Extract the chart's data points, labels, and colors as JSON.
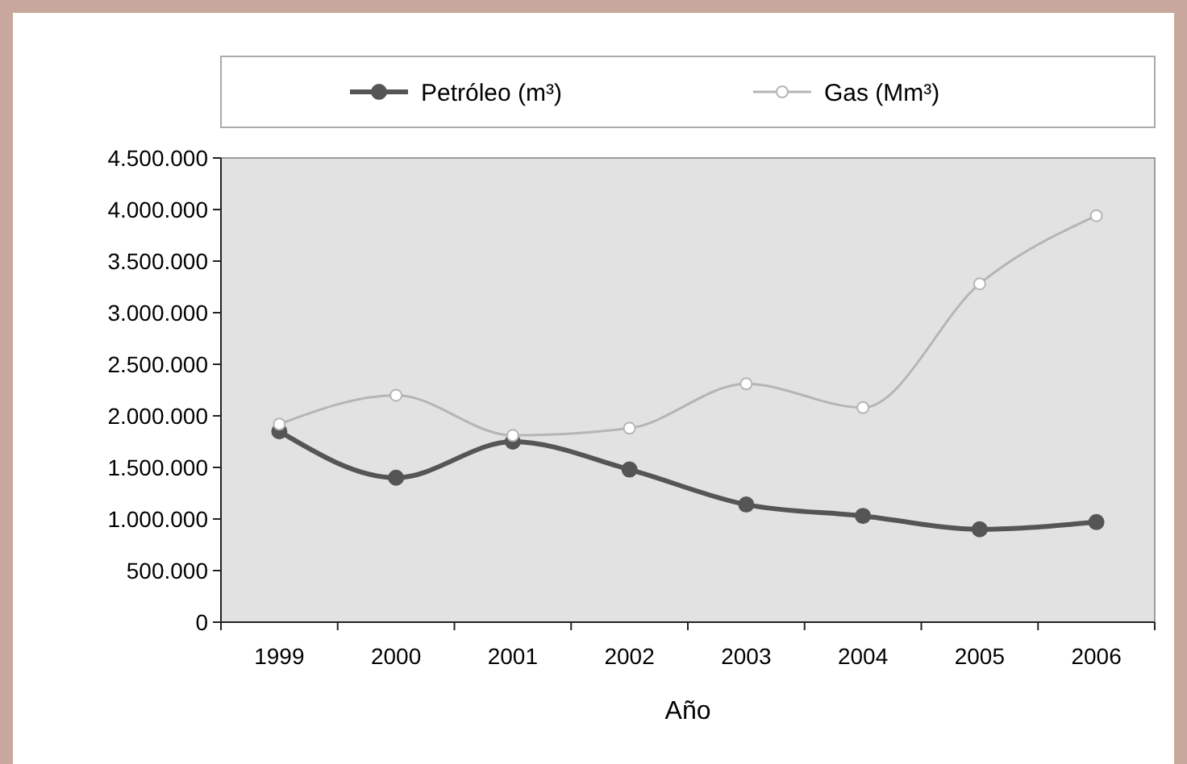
{
  "chart_data": {
    "type": "line",
    "xlabel": "Año",
    "categories": [
      "1999",
      "2000",
      "2001",
      "2002",
      "2003",
      "2004",
      "2005",
      "2006"
    ],
    "series": [
      {
        "name": "Petróleo (m³)",
        "color": "#555555",
        "values": [
          1850000,
          1400000,
          1750000,
          1480000,
          1140000,
          1030000,
          900000,
          970000
        ]
      },
      {
        "name": "Gas (Mm³)",
        "color": "#b5b5b5",
        "values": [
          1920000,
          2200000,
          1810000,
          1880000,
          2310000,
          2080000,
          3280000,
          3940000
        ]
      }
    ],
    "ylim": [
      0,
      4500000
    ],
    "yticks": [
      0,
      {
        "value": 500000,
        "label": "500.000"
      },
      {
        "value": 1000000,
        "label": "1.000.000"
      },
      {
        "value": 1500000,
        "label": "1.500.000"
      },
      {
        "value": 2000000,
        "label": "2.000.000"
      },
      {
        "value": 2500000,
        "label": "2.500.000"
      },
      {
        "value": 3000000,
        "label": "3.000.000"
      },
      {
        "value": 3500000,
        "label": "3.500.000"
      },
      {
        "value": 4000000,
        "label": "4.000.000"
      },
      {
        "value": 4500000,
        "label": "4.500.000"
      }
    ],
    "legend": "top",
    "marker": "circle",
    "line_style": "solid",
    "grid": false
  }
}
